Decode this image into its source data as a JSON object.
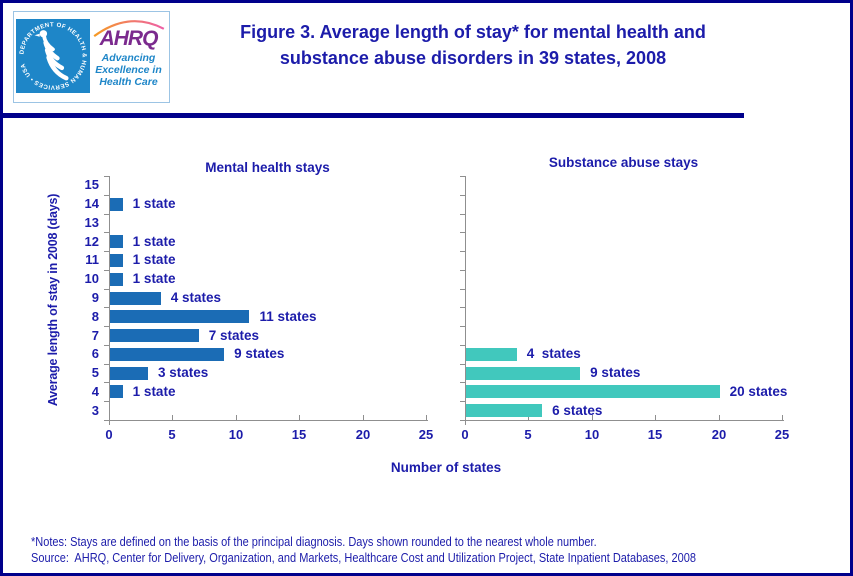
{
  "header": {
    "logo": {
      "seal_text": "DEPARTMENT OF HEALTH & HUMAN SERVICES • USA",
      "brand": "AHRQ",
      "tagline_lines": [
        "Advancing",
        "Excellence in",
        "Health Care"
      ]
    },
    "title_line1": "Figure 3. Average length of stay* for mental health and",
    "title_line2": "substance abuse disorders in 39 states, 2008"
  },
  "axes": {
    "ylabel": "Average length of stay in 2008 (days)",
    "xlabel": "Number of states"
  },
  "chart_data": [
    {
      "type": "bar",
      "orientation": "horizontal",
      "title": "Mental health stays",
      "categories": [
        15,
        14,
        13,
        12,
        11,
        10,
        9,
        8,
        7,
        6,
        5,
        4,
        3
      ],
      "values": [
        0,
        1,
        0,
        1,
        1,
        1,
        4,
        11,
        7,
        9,
        3,
        1,
        0
      ],
      "bar_labels": [
        "",
        "1 state",
        "",
        "1 state",
        "1 state",
        "1 state",
        "4 states",
        "11 states",
        "7 states",
        "9 states",
        "3 states",
        "1 state",
        ""
      ],
      "xlim": [
        0,
        25
      ],
      "xticks": [
        0,
        5,
        10,
        15,
        20,
        25
      ],
      "bar_color": "#1b6cb5",
      "show_category_labels": true,
      "grid": false,
      "legend": false
    },
    {
      "type": "bar",
      "orientation": "horizontal",
      "title": "Substance abuse stays",
      "categories": [
        15,
        14,
        13,
        12,
        11,
        10,
        9,
        8,
        7,
        6,
        5,
        4,
        3
      ],
      "values": [
        0,
        0,
        0,
        0,
        0,
        0,
        0,
        0,
        0,
        4,
        9,
        20,
        6
      ],
      "bar_labels": [
        "",
        "",
        "",
        "",
        "",
        "",
        "",
        "",
        "",
        "4  states",
        "9 states",
        "20 states",
        "6 states"
      ],
      "xlim": [
        0,
        25
      ],
      "xticks": [
        0,
        5,
        10,
        15,
        20,
        25
      ],
      "bar_color": "#41c8bd",
      "show_category_labels": false,
      "grid": false,
      "legend": false
    }
  ],
  "footer": {
    "notes": "*Notes: Stays are defined on the basis of the principal diagnosis. Days shown rounded to the nearest whole number.",
    "source": "Source:  AHRQ, Center for Delivery, Organization, and Markets, Healthcare Cost and Utilization Project, State Inpatient Databases, 2008"
  },
  "colors": {
    "navy_text": "#1c1caa",
    "rule_navy": "#00008b",
    "bar_blue": "#1b6cb5",
    "bar_teal": "#41c8bd",
    "axis_gray": "#8f8f8f",
    "seal_blue": "#1e86c8",
    "brand_purple": "#7b2a8e",
    "arc_start": "#f59a23",
    "arc_end": "#ee5fa7"
  }
}
